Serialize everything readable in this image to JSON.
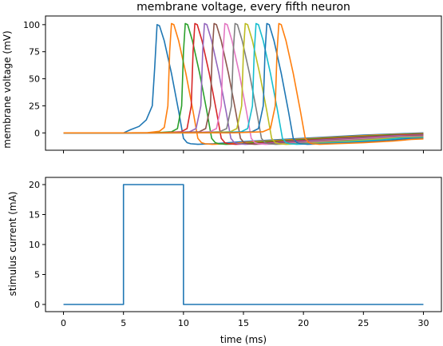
{
  "chart_data": [
    {
      "type": "line",
      "title": "membrane voltage, every fifth neuron",
      "xlabel": "",
      "ylabel": "membrane voltage (mV)",
      "xlim": [
        -1.5,
        31.5
      ],
      "ylim": [
        -16,
        108
      ],
      "xticks": [
        0,
        5,
        10,
        15,
        20,
        25,
        30
      ],
      "xtick_labels_visible": false,
      "yticks": [
        0,
        25,
        50,
        75,
        100
      ],
      "ytick_labels": [
        "0",
        "25",
        "50",
        "75",
        "100"
      ],
      "grid": false,
      "colors": [
        "#1f77b4",
        "#ff7f0e",
        "#2ca02c",
        "#d62728",
        "#9467bd",
        "#8c564b",
        "#e377c2",
        "#7f7f7f",
        "#bcbd22",
        "#17becf",
        "#1f77b4",
        "#ff7f0e"
      ],
      "series": [
        {
          "x": [
            0,
            5.0,
            5.6,
            6.3,
            6.9,
            7.4,
            7.6,
            7.8,
            8.0,
            8.4,
            9.0,
            9.6,
            10.0,
            10.3,
            10.6,
            11.2,
            12.5,
            15,
            20,
            25,
            30
          ],
          "y": [
            0,
            0,
            3,
            6,
            12,
            25,
            60,
            100,
            99,
            85,
            55,
            20,
            -5,
            -9,
            -10,
            -10.5,
            -10,
            -8,
            -5,
            -2,
            0
          ]
        },
        {
          "x": [
            0,
            5,
            7.0,
            8.0,
            8.4,
            8.7,
            8.85,
            9.0,
            9.2,
            9.6,
            10.2,
            10.8,
            11.2,
            11.5,
            11.8,
            12.4,
            13.7,
            16,
            21,
            26,
            30
          ],
          "y": [
            0,
            0,
            0.2,
            1.5,
            5,
            25,
            75,
            101,
            100,
            85,
            55,
            20,
            -5,
            -9,
            -10,
            -10.5,
            -10,
            -8,
            -5,
            -2,
            -0.5
          ]
        },
        {
          "x": [
            0,
            5,
            7.6,
            9.0,
            9.5,
            9.85,
            10.0,
            10.15,
            10.35,
            10.75,
            11.35,
            11.95,
            12.35,
            12.65,
            12.95,
            13.55,
            14.85,
            17,
            22,
            27,
            30
          ],
          "y": [
            0,
            0,
            0.1,
            1,
            4,
            25,
            75,
            101,
            100,
            85,
            55,
            20,
            -5,
            -9,
            -10,
            -10.5,
            -10,
            -8,
            -5,
            -2,
            -1
          ]
        },
        {
          "x": [
            0,
            5,
            8.2,
            9.8,
            10.3,
            10.65,
            10.8,
            10.95,
            11.15,
            11.55,
            12.15,
            12.75,
            13.15,
            13.45,
            13.75,
            14.35,
            15.65,
            18,
            23,
            28,
            30
          ],
          "y": [
            0,
            0,
            0.1,
            1,
            4,
            25,
            75,
            101,
            100,
            85,
            55,
            20,
            -5,
            -9,
            -10,
            -10.5,
            -10,
            -8,
            -5,
            -2,
            -1.5
          ]
        },
        {
          "x": [
            0,
            5,
            8.8,
            10.5,
            11.05,
            11.45,
            11.6,
            11.75,
            11.95,
            12.35,
            12.95,
            13.55,
            13.95,
            14.25,
            14.55,
            15.15,
            16.45,
            19,
            24,
            28,
            30
          ],
          "y": [
            0,
            0,
            0.1,
            1,
            4,
            25,
            75,
            101,
            100,
            85,
            55,
            20,
            -5,
            -9,
            -10,
            -10.5,
            -10,
            -8,
            -5,
            -2.5,
            -2
          ]
        },
        {
          "x": [
            0,
            5,
            9.5,
            11.3,
            11.85,
            12.25,
            12.4,
            12.55,
            12.75,
            13.15,
            13.75,
            14.35,
            14.75,
            15.05,
            15.35,
            15.95,
            17.25,
            20,
            25,
            28,
            30
          ],
          "y": [
            0,
            0,
            0.1,
            1,
            4,
            25,
            75,
            101,
            100,
            85,
            55,
            20,
            -5,
            -9,
            -10,
            -10.5,
            -10,
            -8,
            -5,
            -3,
            -2.5
          ]
        },
        {
          "x": [
            0,
            5,
            10.2,
            12.2,
            12.75,
            13.15,
            13.3,
            13.45,
            13.65,
            14.05,
            14.65,
            15.25,
            15.65,
            15.95,
            16.25,
            16.85,
            18.15,
            21,
            25,
            28,
            30
          ],
          "y": [
            0,
            0,
            0.1,
            1,
            4,
            25,
            75,
            101,
            100,
            85,
            55,
            20,
            -5,
            -9,
            -10,
            -10.5,
            -10,
            -8,
            -5.5,
            -3.5,
            -3
          ]
        },
        {
          "x": [
            0,
            5,
            11.0,
            13.0,
            13.6,
            14.0,
            14.15,
            14.3,
            14.5,
            14.9,
            15.5,
            16.1,
            16.5,
            16.8,
            17.1,
            17.7,
            19.0,
            22,
            26,
            28,
            30
          ],
          "y": [
            0,
            0,
            0.1,
            1,
            4,
            25,
            75,
            101,
            100,
            85,
            55,
            20,
            -5,
            -9,
            -10,
            -10.5,
            -10,
            -8,
            -5.5,
            -4,
            -3.5
          ]
        },
        {
          "x": [
            0,
            5,
            11.8,
            13.9,
            14.45,
            14.85,
            15.0,
            15.15,
            15.35,
            15.75,
            16.35,
            16.95,
            17.35,
            17.65,
            17.95,
            18.55,
            19.85,
            22.5,
            26,
            28,
            30
          ],
          "y": [
            0,
            0,
            0.1,
            1,
            4,
            25,
            75,
            101,
            100,
            85,
            55,
            20,
            -5,
            -9,
            -10,
            -10.5,
            -10,
            -8.5,
            -6,
            -4.5,
            -4
          ]
        },
        {
          "x": [
            0,
            5,
            12.6,
            14.8,
            15.35,
            15.75,
            15.9,
            16.05,
            16.25,
            16.65,
            17.25,
            17.85,
            18.25,
            18.55,
            18.85,
            19.45,
            20.75,
            23.5,
            26.5,
            28,
            30
          ],
          "y": [
            0,
            0,
            0.1,
            1,
            4,
            25,
            75,
            101,
            100,
            85,
            55,
            20,
            -5,
            -9,
            -10,
            -10.5,
            -10,
            -8.5,
            -6.5,
            -5,
            -4.5
          ]
        },
        {
          "x": [
            0,
            5,
            13.4,
            15.7,
            16.25,
            16.65,
            16.8,
            16.95,
            17.15,
            17.55,
            18.15,
            18.75,
            19.15,
            19.45,
            19.75,
            20.35,
            21.65,
            24,
            27,
            28.5,
            30
          ],
          "y": [
            0,
            0,
            0.1,
            1,
            4,
            25,
            75,
            101,
            100,
            85,
            55,
            20,
            -5,
            -9,
            -10,
            -10.5,
            -10,
            -9,
            -7,
            -5.5,
            -5
          ]
        },
        {
          "x": [
            0,
            5,
            14.2,
            16.6,
            17.25,
            17.65,
            17.8,
            17.95,
            18.15,
            18.55,
            19.15,
            19.75,
            20.15,
            20.45,
            20.75,
            21.35,
            22.65,
            25,
            27.5,
            29,
            30
          ],
          "y": [
            0,
            0,
            0.1,
            1,
            4,
            25,
            75,
            101,
            100,
            85,
            55,
            20,
            -5,
            -9,
            -10,
            -10.5,
            -10,
            -9,
            -7.5,
            -6,
            -5.5
          ]
        }
      ]
    },
    {
      "type": "line",
      "title": "",
      "xlabel": "time (ms)",
      "ylabel": "stimulus current (mA)",
      "xlim": [
        -1.5,
        31.5
      ],
      "ylim": [
        -1.2,
        21.2
      ],
      "xticks": [
        0,
        5,
        10,
        15,
        20,
        25,
        30
      ],
      "xtick_labels": [
        "0",
        "5",
        "10",
        "15",
        "20",
        "25",
        "30"
      ],
      "yticks": [
        0,
        5,
        10,
        15,
        20
      ],
      "ytick_labels": [
        "0",
        "5",
        "10",
        "15",
        "20"
      ],
      "grid": false,
      "colors": [
        "#1f77b4"
      ],
      "series": [
        {
          "x": [
            0,
            5,
            5,
            10,
            10,
            30
          ],
          "y": [
            0,
            0,
            20,
            20,
            0,
            0
          ]
        }
      ]
    }
  ]
}
